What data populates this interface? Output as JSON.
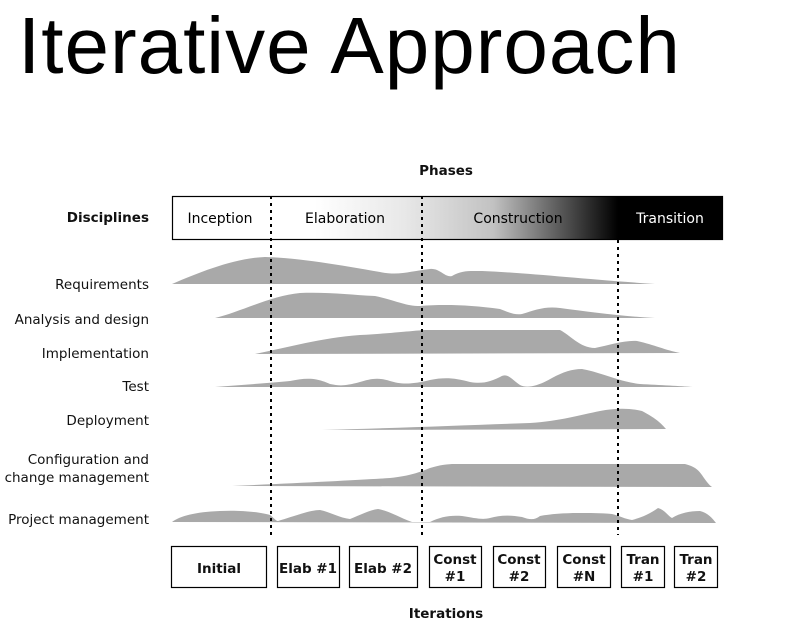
{
  "title": "Iterative Approach",
  "diagram": {
    "phases_header": "Phases",
    "disciplines_header": "Disciplines",
    "iterations_header": "Iterations",
    "phases": [
      "Inception",
      "Elaboration",
      "Construction",
      "Transition"
    ],
    "disciplines": [
      {
        "label": "Requirements"
      },
      {
        "label": "Analysis and design"
      },
      {
        "label": "Implementation"
      },
      {
        "label": "Test"
      },
      {
        "label": "Deployment"
      },
      {
        "label_line1": "Configuration and",
        "label_line2": "change management"
      },
      {
        "label": "Project management"
      }
    ],
    "iterations": [
      {
        "line1": "Initial"
      },
      {
        "line1": "Elab #1"
      },
      {
        "line1": "Elab #2"
      },
      {
        "line1": "Const",
        "line2": "#1"
      },
      {
        "line1": "Const",
        "line2": "#2"
      },
      {
        "line1": "Const",
        "line2": "#N"
      },
      {
        "line1": "Tran",
        "line2": "#1"
      },
      {
        "line1": "Tran",
        "line2": "#2"
      }
    ],
    "colors": {
      "hump": "#a9a9a9",
      "border": "#000000",
      "transition_fill": "#000000"
    }
  }
}
